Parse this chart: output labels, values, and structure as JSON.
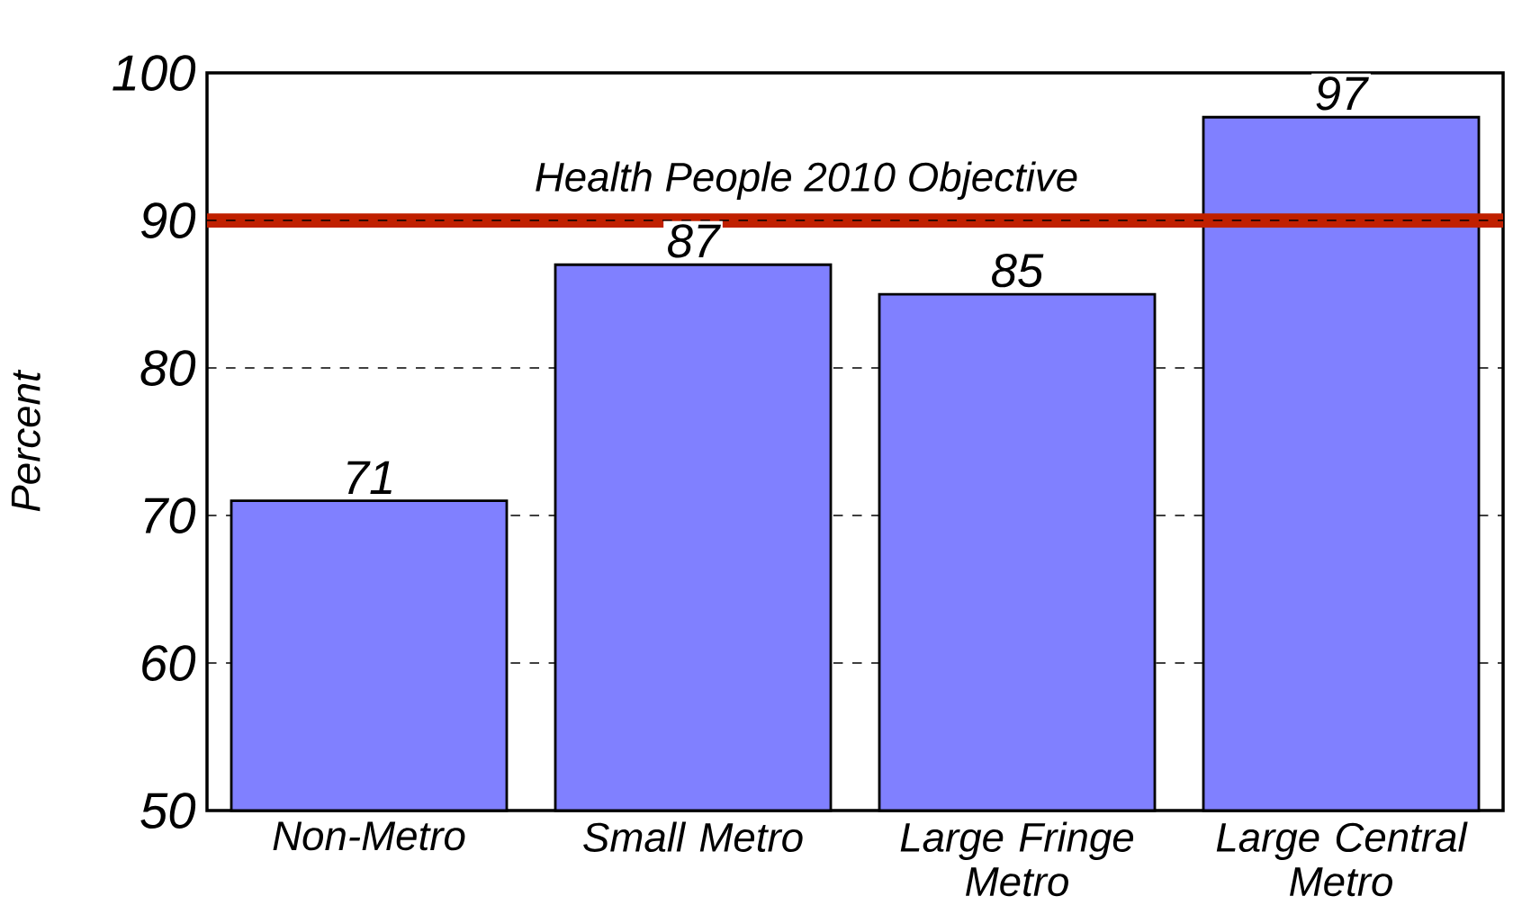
{
  "chart_data": {
    "type": "bar",
    "ylabel": "Percent",
    "categories": [
      "Non-Metro",
      "Small Metro",
      "Large Fringe Metro",
      "Large Central Metro"
    ],
    "values": [
      71,
      87,
      85,
      97
    ],
    "color": "#8080ff",
    "value_labels": [
      "71",
      "87",
      "85",
      "97"
    ],
    "ylim": [
      50,
      100
    ],
    "yticks": [
      50,
      60,
      70,
      80,
      90,
      100
    ],
    "grid": "y",
    "ref_lines": [
      {
        "axis": "y",
        "value": 90,
        "label": "Health People 2010 Objective",
        "color": "#c02000"
      }
    ]
  }
}
